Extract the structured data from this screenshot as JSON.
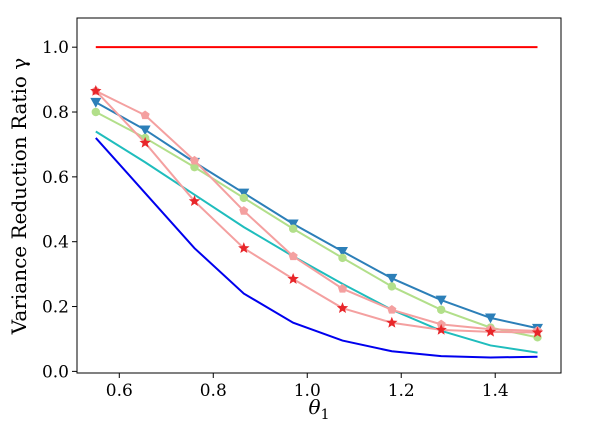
{
  "chart_data": {
    "type": "line",
    "title": "",
    "xlabel": "θ",
    "xlabel_subscript": "1",
    "ylabel": "Variance Reduction Ratio  γ",
    "xlim": [
      0.51,
      1.54
    ],
    "ylim": [
      -0.005,
      1.09
    ],
    "xticks": [
      0.6,
      0.8,
      1.0,
      1.2,
      1.4
    ],
    "yticks": [
      0.0,
      0.2,
      0.4,
      0.6,
      0.8,
      1.0
    ],
    "xtick_labels": [
      "0.6",
      "0.8",
      "1.0",
      "1.2",
      "1.4"
    ],
    "ytick_labels": [
      "0.0",
      "0.2",
      "0.4",
      "0.6",
      "0.8",
      "1.0"
    ],
    "grid": false,
    "legend": "none",
    "x": [
      0.55,
      0.655,
      0.76,
      0.865,
      0.97,
      1.075,
      1.18,
      1.285,
      1.39,
      1.49
    ],
    "series": [
      {
        "color": "#ff0000",
        "marker": "none",
        "values": [
          1.0,
          1.0,
          1.0,
          1.0,
          1.0,
          1.0,
          1.0,
          1.0,
          1.0,
          1.0
        ]
      },
      {
        "color": "#0000ee",
        "marker": "none",
        "values": [
          0.72,
          0.55,
          0.38,
          0.24,
          0.15,
          0.095,
          0.062,
          0.047,
          0.043,
          0.045
        ]
      },
      {
        "color": "#1fbdbd",
        "marker": "none",
        "values": [
          0.74,
          0.645,
          0.545,
          0.445,
          0.355,
          0.27,
          0.19,
          0.125,
          0.08,
          0.058
        ]
      },
      {
        "color": "#2c7fb8",
        "marker": "triangle-down",
        "values": [
          0.83,
          0.745,
          0.645,
          0.55,
          0.455,
          0.37,
          0.287,
          0.22,
          0.165,
          0.133
        ]
      },
      {
        "color": "#b2df8a",
        "marker": "circle",
        "values": [
          0.8,
          0.72,
          0.63,
          0.535,
          0.44,
          0.35,
          0.262,
          0.19,
          0.135,
          0.105
        ]
      },
      {
        "color": "#f4a0a0",
        "marker": "pentagon",
        "values": [
          0.865,
          0.79,
          0.65,
          0.495,
          0.355,
          0.255,
          0.19,
          0.145,
          0.13,
          0.125
        ]
      },
      {
        "color": "#f4a0a0",
        "marker": "star",
        "marker_color": "#e8262a",
        "values": [
          0.865,
          0.705,
          0.525,
          0.38,
          0.285,
          0.195,
          0.15,
          0.128,
          0.122,
          0.12
        ]
      }
    ]
  }
}
